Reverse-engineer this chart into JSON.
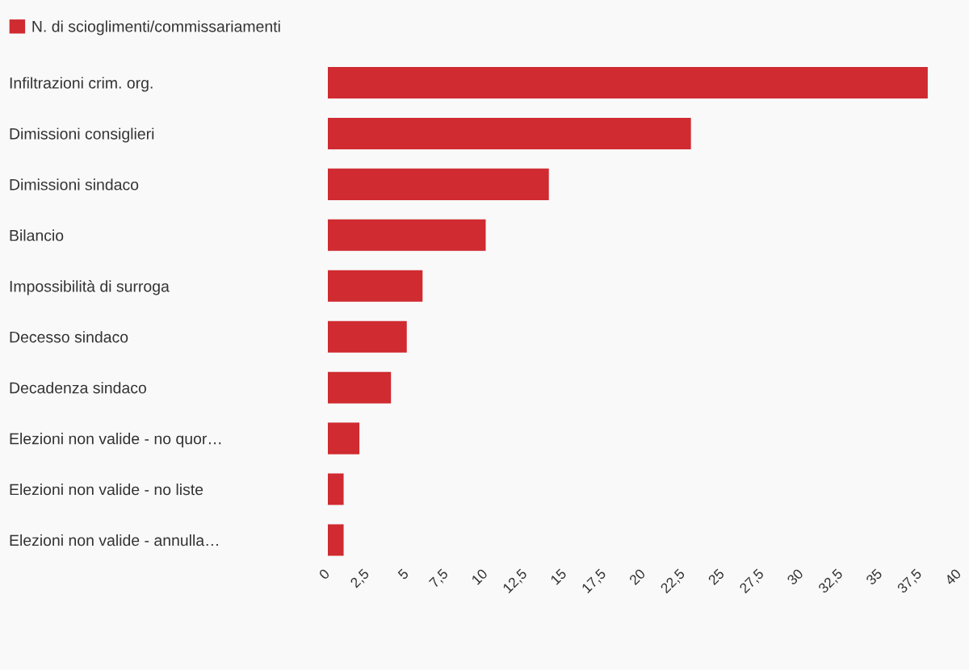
{
  "chart_data": {
    "type": "bar",
    "orientation": "horizontal",
    "categories": [
      "Infiltrazioni crim. org.",
      "Dimissioni consiglieri",
      "Dimissioni sindaco",
      "Bilancio",
      "Impossibilità di surroga",
      "Decesso sindaco",
      "Decadenza sindaco",
      "Elezioni non valide - no quor…",
      "Elezioni non valide - no liste",
      "Elezioni non valide - annulla…"
    ],
    "series": [
      {
        "name": "N. di scioglimenti/commissariamenti",
        "color": "#cf2b31",
        "values": [
          38,
          23,
          14,
          10,
          6,
          5,
          4,
          2,
          1,
          1
        ]
      }
    ],
    "xlim": [
      0,
      40
    ],
    "xticks": [
      0,
      {
        "value": 2.5,
        "label": "2,5"
      },
      5,
      {
        "value": 7.5,
        "label": "7,5"
      },
      10,
      {
        "value": 12.5,
        "label": "12,5"
      },
      15,
      {
        "value": 17.5,
        "label": "17,5"
      },
      20,
      {
        "value": 22.5,
        "label": "22,5"
      },
      25,
      {
        "value": 27.5,
        "label": "27,5"
      },
      30,
      {
        "value": 32.5,
        "label": "32,5"
      },
      35,
      {
        "value": 37.5,
        "label": "37,5"
      },
      40
    ],
    "legend": "top left"
  }
}
